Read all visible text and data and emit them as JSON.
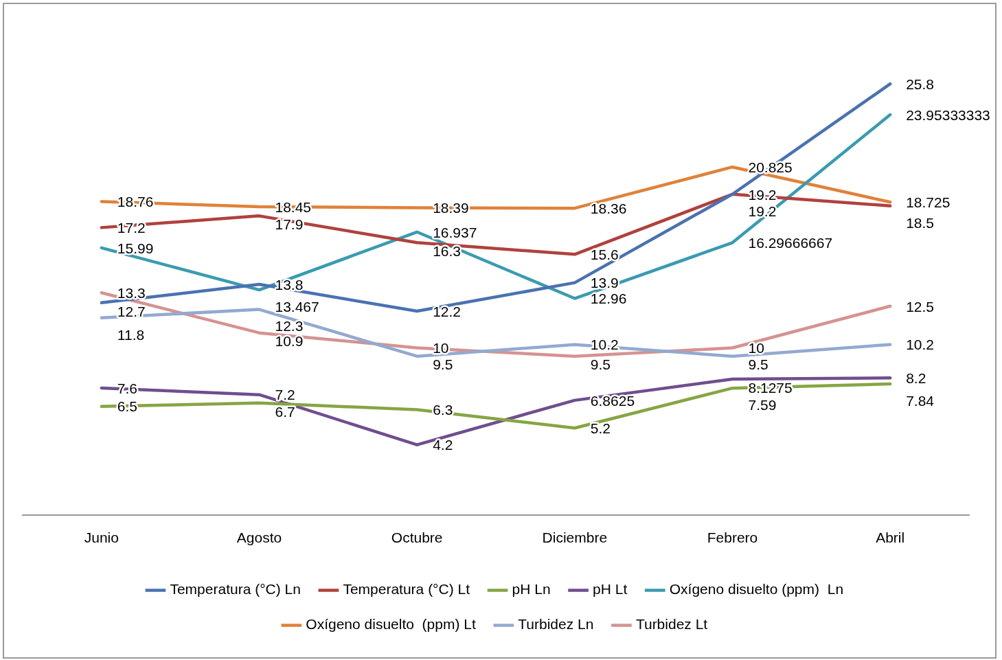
{
  "chart_data": {
    "type": "line",
    "categories": [
      "Junio",
      "Agosto",
      "Octubre",
      "Diciembre",
      "Febrero",
      "Abril"
    ],
    "series": [
      {
        "name": "Temperatura (°C) Ln",
        "color": "#4a72b0",
        "values": [
          12.7,
          13.8,
          12.2,
          13.9,
          19.2,
          25.8
        ]
      },
      {
        "name": "Temperatura (°C) Lt",
        "color": "#b0413e",
        "values": [
          17.2,
          17.9,
          16.3,
          15.6,
          19.2,
          18.5
        ]
      },
      {
        "name": "pH Ln",
        "color": "#86a544",
        "values": [
          6.5,
          6.7,
          6.3,
          5.2,
          7.59,
          7.84
        ]
      },
      {
        "name": "pH Lt",
        "color": "#6f4e8e",
        "values": [
          7.6,
          7.2,
          4.2,
          6.8625,
          8.1275,
          8.2
        ]
      },
      {
        "name": "Oxígeno disuelto (ppm)  Ln",
        "color": "#3b9bb0",
        "values": [
          15.99,
          13.467,
          16.937,
          12.96,
          16.29666667,
          23.95333333
        ]
      },
      {
        "name": "Oxígeno disuelto  (ppm) Lt",
        "color": "#e0823a",
        "values": [
          18.76,
          18.45,
          18.39,
          18.36,
          20.825,
          18.725
        ]
      },
      {
        "name": "Turbidez Ln",
        "color": "#93a9d1",
        "values": [
          11.8,
          12.3,
          9.5,
          10.2,
          9.5,
          10.2
        ]
      },
      {
        "name": "Turbidez Lt",
        "color": "#d49391",
        "values": [
          13.3,
          10.9,
          10,
          9.5,
          10,
          12.5
        ]
      }
    ],
    "data_labels": true,
    "legend": "bottom",
    "grid": false,
    "marker": "none",
    "line_style": "solid",
    "tick_labels": "x"
  }
}
